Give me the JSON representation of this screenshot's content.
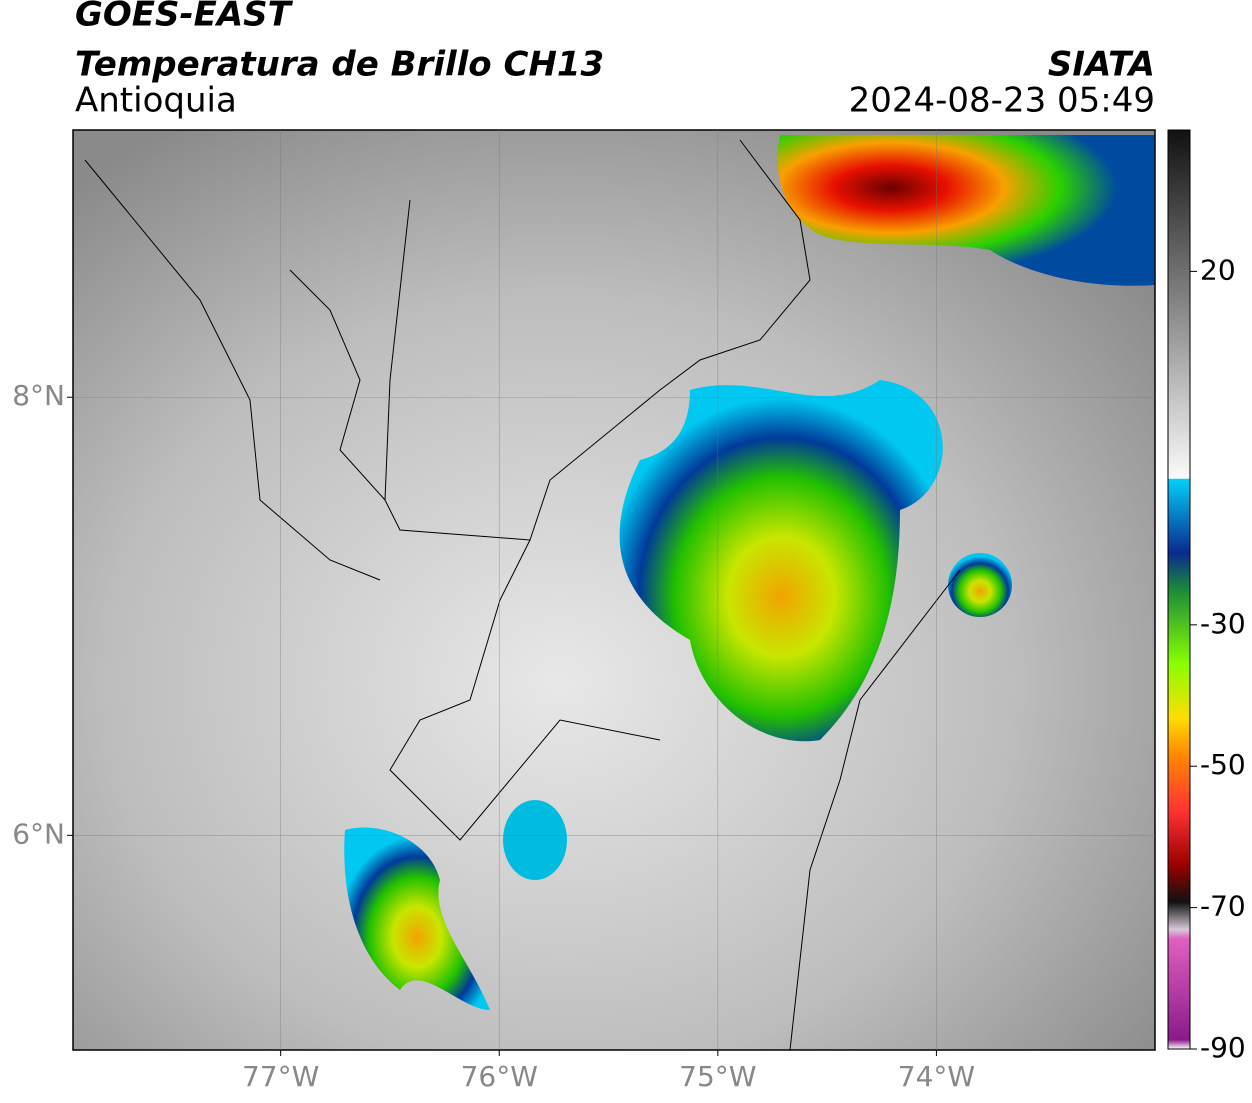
{
  "header": {
    "title": "GOES-EAST",
    "subtitle": "Temperatura de Brillo CH13",
    "region": "Antioquia",
    "source": "SIATA",
    "datetime": "2024-08-23 05:49"
  },
  "map": {
    "xlim": [
      -77.95,
      -73
    ],
    "ylim": [
      5.02,
      9.22
    ],
    "xticks": [
      {
        "value": -77,
        "label": "77°W"
      },
      {
        "value": -76,
        "label": "76°W"
      },
      {
        "value": -75,
        "label": "75°W"
      },
      {
        "value": -74,
        "label": "74°W"
      }
    ],
    "yticks": [
      {
        "value": 8,
        "label": "8°N"
      },
      {
        "value": 6,
        "label": "6°N"
      }
    ]
  },
  "colorbar": {
    "lim": [
      -90,
      40
    ],
    "ticks": [
      20,
      -30,
      -50,
      -70,
      -90
    ]
  }
}
